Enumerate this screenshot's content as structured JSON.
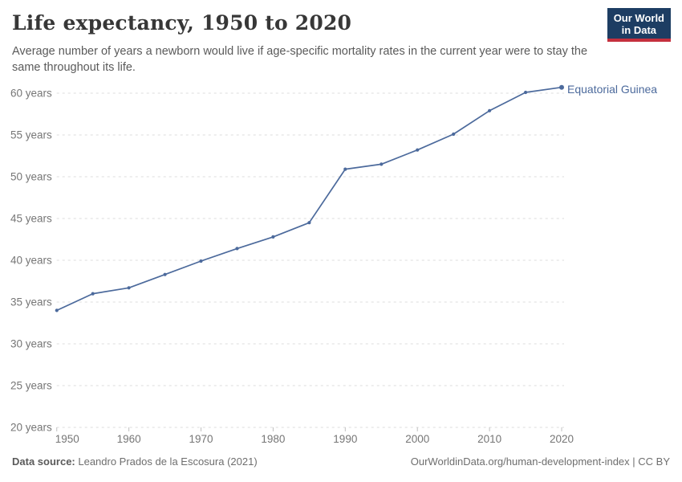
{
  "header": {
    "title": "Life expectancy, 1950 to 2020",
    "subtitle": "Average number of years a newborn would live if age-specific mortality rates in the current year were to stay the same throughout its life."
  },
  "logo": {
    "line1": "Our World",
    "line2": "in Data",
    "navy": "#1d3d63",
    "red": "#c5303e"
  },
  "chart_data": {
    "type": "line",
    "title": "Life expectancy, 1950 to 2020",
    "xlabel": "",
    "ylabel": "",
    "x": [
      1950,
      1955,
      1960,
      1965,
      1970,
      1975,
      1980,
      1985,
      1990,
      1995,
      2000,
      2005,
      2010,
      2015,
      2020
    ],
    "series": [
      {
        "name": "Equatorial Guinea",
        "values": [
          34.0,
          36.0,
          36.7,
          38.3,
          39.9,
          41.4,
          42.8,
          44.5,
          50.9,
          51.5,
          53.2,
          55.1,
          57.9,
          60.1,
          60.7
        ],
        "color": "#4C6A9C"
      }
    ],
    "xlim": [
      1950,
      2020
    ],
    "ylim": [
      20,
      60
    ],
    "xticks": [
      1950,
      1960,
      1970,
      1980,
      1990,
      2000,
      2010,
      2020
    ],
    "yticks": [
      20,
      25,
      30,
      35,
      40,
      45,
      50,
      55,
      60
    ],
    "ytick_suffix": " years",
    "grid": "horizontal-dashed",
    "legend_position": "line-end-label",
    "grid_color": "#dcdcdc",
    "axis_text_color": "#767676",
    "tick_color": "#c0c0c0",
    "marker": "dot"
  },
  "footer": {
    "source_label": "Data source:",
    "source_text": " Leandro Prados de la Escosura (2021)",
    "right_text": "OurWorldinData.org/human-development-index | CC BY"
  }
}
